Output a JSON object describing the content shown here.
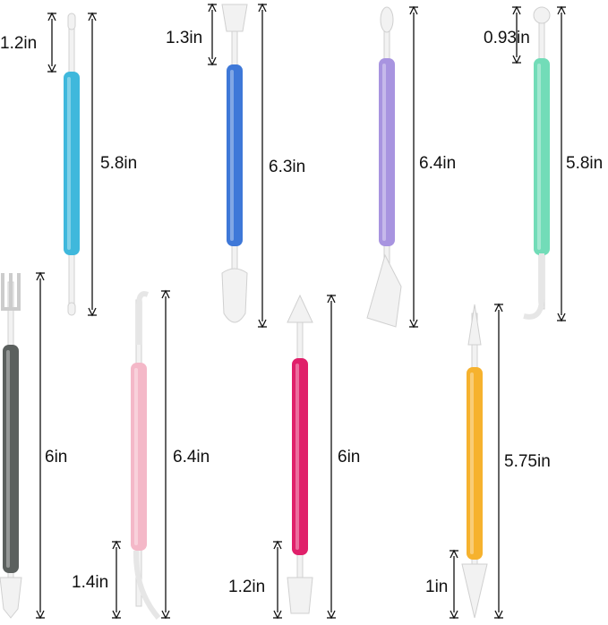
{
  "tools": [
    {
      "color": "#3fb8dc",
      "tip_label": "1.2in",
      "length_label": "5.8in"
    },
    {
      "color": "#3e78d8",
      "tip_label": "1.3in",
      "length_label": "6.3in"
    },
    {
      "color": "#a894e0",
      "tip_label": "",
      "length_label": "6.4in"
    },
    {
      "color": "#72dcb8",
      "tip_label": "0.93in",
      "length_label": "5.8in"
    },
    {
      "color": "#5b605e",
      "tip_label": "",
      "length_label": "6in"
    },
    {
      "color": "#f4b8c8",
      "tip_label": "1.4in",
      "length_label": "6.4in"
    },
    {
      "color": "#e0206a",
      "tip_label": "1.2in",
      "length_label": "6in"
    },
    {
      "color": "#f6b22e",
      "tip_label": "1in",
      "length_label": "5.75in"
    }
  ]
}
